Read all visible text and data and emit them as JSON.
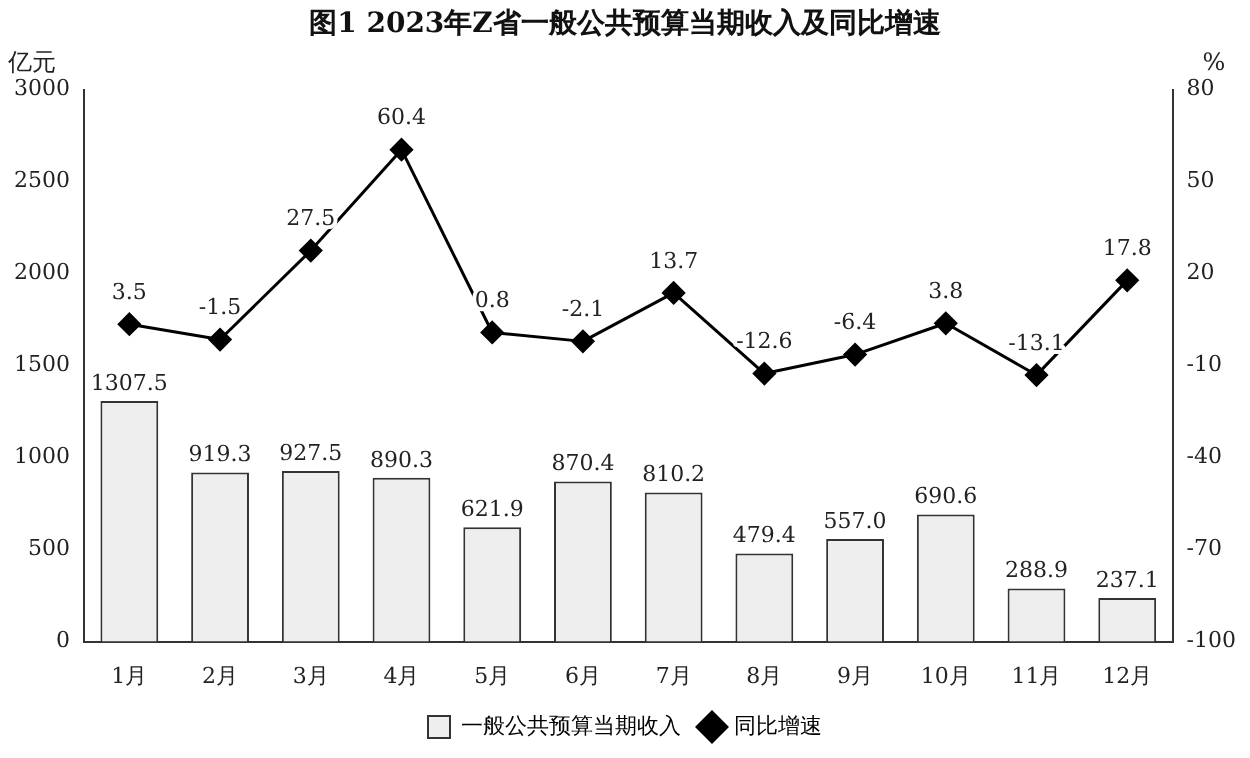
{
  "chart_data": {
    "type": "bar",
    "title": "图1 2023年Z省一般公共预算当期收入及同比增速",
    "ylabel": "亿元",
    "y2label": "%",
    "categories": [
      "1月",
      "2月",
      "3月",
      "4月",
      "5月",
      "6月",
      "7月",
      "8月",
      "9月",
      "10月",
      "11月",
      "12月"
    ],
    "series": [
      {
        "name": "一般公共预算当期收入",
        "color": "#eeeeee",
        "values": [
          1307.5,
          919.3,
          927.5,
          890.3,
          621.9,
          870.4,
          810.2,
          479.4,
          557.0,
          690.6,
          288.9,
          237.1
        ],
        "value_labels": [
          "1307.5",
          "919.3",
          "927.5",
          "890.3",
          "621.9",
          "870.4",
          "810.2",
          "479.4",
          "557.0",
          "690.6",
          "288.9",
          "237.1"
        ]
      },
      {
        "name": "同比增速",
        "type": "line",
        "axis": "y2",
        "color": "#000000",
        "marker": "diamond",
        "values": [
          3.5,
          -1.5,
          27.5,
          60.4,
          0.8,
          -2.1,
          13.7,
          -12.6,
          -6.4,
          3.8,
          -13.1,
          17.8
        ],
        "value_labels": [
          "3.5",
          "-1.5",
          "27.5",
          "60.4",
          "0.8",
          "-2.1",
          "13.7",
          "-12.6",
          "-6.4",
          "3.8",
          "-13.1",
          "17.8"
        ]
      }
    ],
    "ylim": [
      0,
      3000
    ],
    "yticks": [
      0,
      500,
      1000,
      1500,
      2000,
      2500,
      3000
    ],
    "y2lim": [
      -100,
      80
    ],
    "y2ticks": [
      -100,
      -70,
      -40,
      -10,
      20,
      50,
      80
    ],
    "grid": false,
    "legend": "bottom"
  }
}
